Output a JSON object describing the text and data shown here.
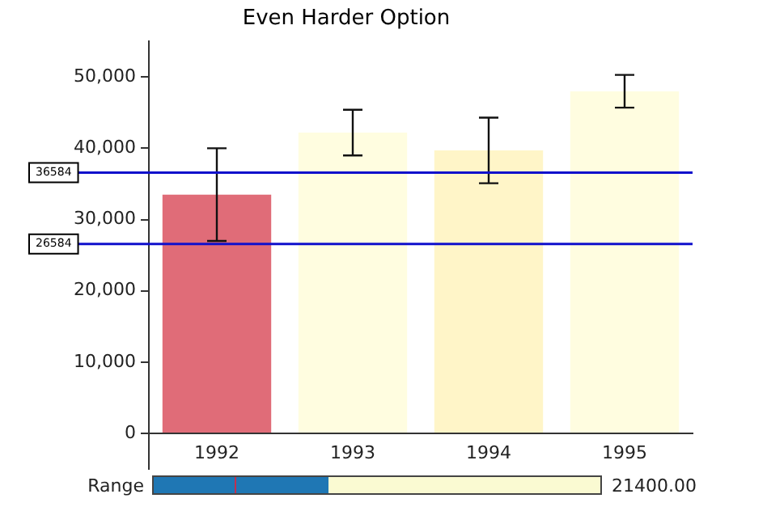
{
  "chart_data": {
    "type": "bar",
    "title": "Even Harder Option",
    "categories": [
      "1992",
      "1993",
      "1994",
      "1995"
    ],
    "values": [
      33500,
      42200,
      39700,
      48000
    ],
    "colors": [
      "#e06c78",
      "#fffde0",
      "#fff5c8",
      "#fffde0"
    ],
    "errors": [
      6500,
      3200,
      4600,
      2300
    ],
    "ylim": [
      -5000,
      55000
    ],
    "yticks": [
      {
        "value": 0,
        "label": "0"
      },
      {
        "value": 10000,
        "label": "10,000"
      },
      {
        "value": 20000,
        "label": "20,000"
      },
      {
        "value": 30000,
        "label": "30,000"
      },
      {
        "value": 40000,
        "label": "40,000"
      },
      {
        "value": 50000,
        "label": "50,000"
      }
    ],
    "ref_lines": [
      {
        "axis": "y",
        "value": 36584,
        "label": "36584",
        "color": "#1010cc"
      },
      {
        "axis": "y",
        "value": 26584,
        "label": "26584",
        "color": "#1010cc"
      }
    ],
    "annotations": [
      "Range",
      "21400.00"
    ],
    "grid": false,
    "legend": false
  }
}
